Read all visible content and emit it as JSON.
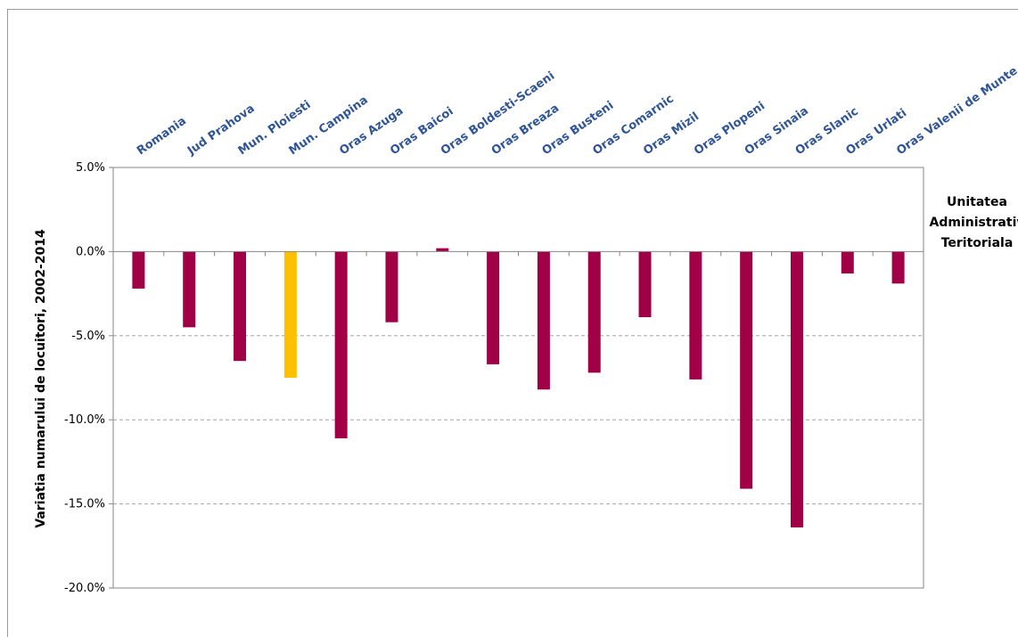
{
  "chart_data": {
    "type": "bar",
    "ylabel": "Variatia numarului de locuitori, 2002-2014",
    "xlabel_lines": [
      "Unitatea",
      "Administrativ",
      "Teritoriala"
    ],
    "categories": [
      "Romania",
      "Jud Prahova",
      "Mun. Ploiesti",
      "Mun. Campina",
      "Oras Azuga",
      "Oras Baicoi",
      "Oras Boldesti-Scaeni",
      "Oras Breaza",
      "Oras Busteni",
      "Oras Comarnic",
      "Oras Mizil",
      "Oras Plopeni",
      "Oras Sinaia",
      "Oras Slanic",
      "Oras Urlati",
      "Oras Valenii de Munte"
    ],
    "values": [
      -2.2,
      -4.5,
      -6.5,
      -7.5,
      -11.1,
      -4.2,
      0.2,
      -6.7,
      -8.2,
      -7.2,
      -3.9,
      -7.6,
      -14.1,
      -16.4,
      -1.3,
      -1.9
    ],
    "ylim": [
      -20,
      5
    ],
    "yticks": [
      5,
      0,
      -5,
      -10,
      -15,
      -20
    ],
    "ytick_labels": [
      "5.0%",
      "0.0%",
      "-5.0%",
      "-10.0%",
      "-15.0%",
      "-20.0%"
    ],
    "colors": {
      "default": "#a10046",
      "highlight": "#ffc000",
      "highlight_category": "Mun. Campina",
      "axis": "#868686",
      "grid": "#a6a6a6",
      "label": "#2f5597"
    },
    "grid": true,
    "legend": "none"
  }
}
